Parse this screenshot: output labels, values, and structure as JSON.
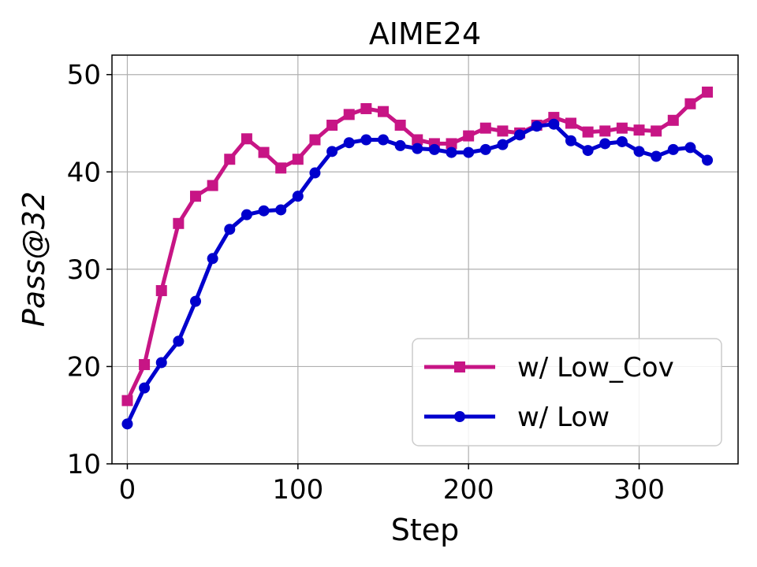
{
  "chart_data": {
    "type": "line",
    "title": "AIME24",
    "xlabel": "Step",
    "ylabel": "Pass@32",
    "xlim": [
      -9,
      358
    ],
    "ylim": [
      10,
      52
    ],
    "xticks": [
      0,
      100,
      200,
      300
    ],
    "yticks": [
      10,
      20,
      30,
      40,
      50
    ],
    "grid": true,
    "legend_position": "lower-right",
    "x": [
      0,
      10,
      20,
      30,
      40,
      50,
      60,
      70,
      80,
      90,
      100,
      110,
      120,
      130,
      140,
      150,
      160,
      170,
      180,
      190,
      200,
      210,
      220,
      230,
      240,
      250,
      260,
      270,
      280,
      290,
      300,
      310,
      320,
      330,
      340
    ],
    "series": [
      {
        "name": "w/ Low_Cov",
        "color": "#c71585",
        "marker": "square",
        "values": [
          16.5,
          20.2,
          27.8,
          34.7,
          37.5,
          38.6,
          41.3,
          43.4,
          42.0,
          40.4,
          41.3,
          43.3,
          44.8,
          45.9,
          46.5,
          46.2,
          44.8,
          43.3,
          42.9,
          42.9,
          43.7,
          44.5,
          44.2,
          44.0,
          44.8,
          45.6,
          45.0,
          44.1,
          44.2,
          44.5,
          44.3,
          44.2,
          45.3,
          47.0,
          48.2
        ]
      },
      {
        "name": "w/ Low",
        "color": "#0000cd",
        "marker": "circle",
        "values": [
          14.1,
          17.8,
          20.4,
          22.6,
          26.7,
          31.1,
          34.1,
          35.6,
          36.0,
          36.1,
          37.5,
          39.9,
          42.1,
          43.0,
          43.3,
          43.3,
          42.7,
          42.4,
          42.3,
          42.0,
          42.0,
          42.3,
          42.8,
          43.8,
          44.7,
          44.9,
          43.2,
          42.2,
          42.9,
          43.1,
          42.1,
          41.6,
          42.3,
          42.5,
          41.2
        ]
      }
    ]
  }
}
